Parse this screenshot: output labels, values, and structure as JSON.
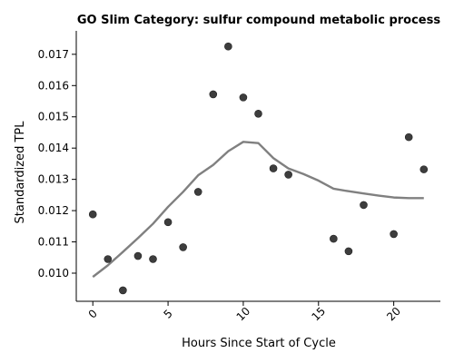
{
  "chart_data": {
    "type": "scatter",
    "title": "GO Slim Category: sulfur compound metabolic process",
    "xlabel": "Hours Since Start of Cycle",
    "ylabel": "Standardized TPL",
    "xlim": [
      -1.1,
      23.1
    ],
    "ylim": [
      0.0091,
      0.01775
    ],
    "x_ticks": [
      0,
      5,
      10,
      15,
      20
    ],
    "y_ticks": [
      0.01,
      0.011,
      0.012,
      0.013,
      0.014,
      0.015,
      0.016,
      0.017
    ],
    "y_tick_labels": [
      "0.010",
      "0.011",
      "0.012",
      "0.013",
      "0.014",
      "0.015",
      "0.016",
      "0.017"
    ],
    "grid": false,
    "legend": "none",
    "point_color": "#333333",
    "line_color": "#808080",
    "points": {
      "x": [
        0,
        1,
        2,
        3,
        4,
        5,
        6,
        7,
        8,
        9,
        10,
        11,
        12,
        13,
        16,
        17,
        18,
        20,
        21,
        22
      ],
      "y": [
        0.01188,
        0.01045,
        0.00945,
        0.01055,
        0.01045,
        0.01163,
        0.01083,
        0.0126,
        0.01572,
        0.01725,
        0.01562,
        0.0151,
        0.01335,
        0.01315,
        0.0111,
        0.0107,
        0.01218,
        0.01125,
        0.01435,
        0.01332
      ]
    },
    "trend_line": {
      "x": [
        0,
        1,
        2,
        3,
        4,
        5,
        6,
        7,
        8,
        9,
        10,
        11,
        12,
        13,
        14,
        15,
        16,
        17,
        18,
        19,
        20,
        21,
        22
      ],
      "y": [
        0.00988,
        0.01025,
        0.01068,
        0.01112,
        0.01158,
        0.01212,
        0.0126,
        0.01313,
        0.01346,
        0.0139,
        0.0142,
        0.01416,
        0.01368,
        0.01335,
        0.01317,
        0.01296,
        0.0127,
        0.01262,
        0.01255,
        0.01248,
        0.01242,
        0.0124,
        0.0124
      ]
    }
  }
}
